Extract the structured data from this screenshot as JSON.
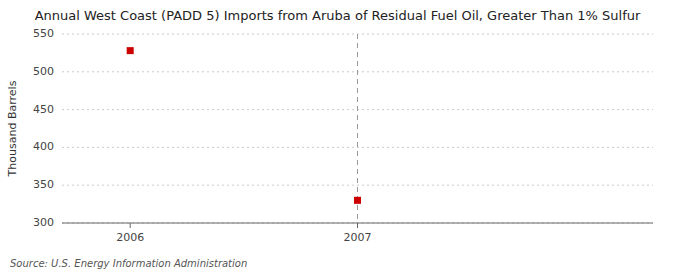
{
  "chart_data": {
    "type": "scatter",
    "title": "Annual West Coast (PADD 5) Imports from Aruba of Residual Fuel Oil, Greater Than 1% Sulfur",
    "ylabel": "Thousand Barrels",
    "source": "Source: U.S. Energy Information Administration",
    "x": [
      2006,
      2007
    ],
    "values": [
      528,
      330
    ],
    "color": "#cc0000",
    "marker": "square",
    "xlim": [
      2005.7,
      2008.3
    ],
    "xticks": [
      2006,
      2007
    ],
    "ylim": [
      300,
      550
    ],
    "yticks": [
      300,
      350,
      400,
      450,
      500,
      550
    ],
    "grid": true,
    "vline": 2007
  }
}
